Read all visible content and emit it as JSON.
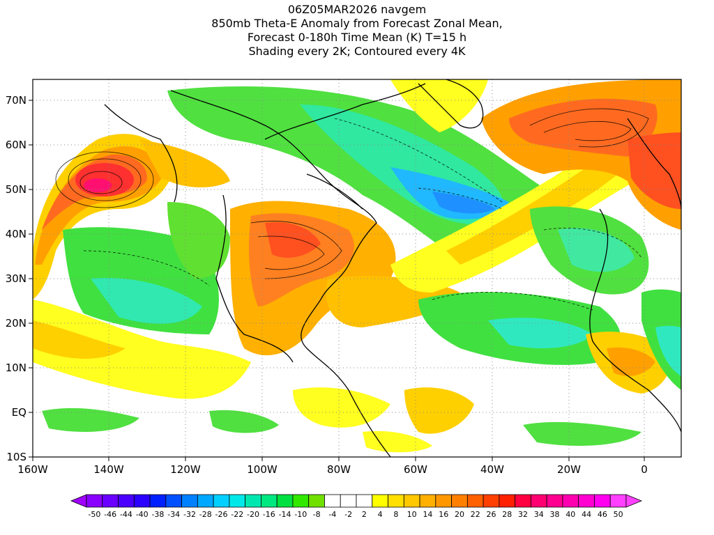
{
  "header": {
    "line1": "06Z05MAR2026 navgem",
    "line2": "850mb Theta-E Anomaly from Forecast Zonal Mean,",
    "line3": "Forecast 0-180h Time Mean (K) T=15 h",
    "line4": "Shading every 2K; Contoured every 4K"
  },
  "axes": {
    "lon_labels": [
      "160W",
      "140W",
      "120W",
      "100W",
      "80W",
      "60W",
      "40W",
      "20W",
      "0"
    ],
    "lat_labels": [
      "70N",
      "60N",
      "50N",
      "40N",
      "30N",
      "20N",
      "10N",
      "EQ",
      "10S"
    ]
  },
  "colorbar": {
    "labels": [
      "-50",
      "-46",
      "-44",
      "-40",
      "-38",
      "-34",
      "-32",
      "-28",
      "-26",
      "-22",
      "-20",
      "-16",
      "-14",
      "-10",
      "-8",
      "-4",
      "-2",
      "2",
      "4",
      "8",
      "10",
      "14",
      "16",
      "20",
      "22",
      "26",
      "28",
      "32",
      "34",
      "38",
      "40",
      "44",
      "46",
      "50"
    ],
    "colors": [
      "#8a00ff",
      "#6a00ff",
      "#4a00ff",
      "#2a00ff",
      "#0020ff",
      "#0050ff",
      "#0080ff",
      "#00a8ff",
      "#00d0ff",
      "#00e8e8",
      "#00e8b0",
      "#00e880",
      "#00e040",
      "#30e800",
      "#70e000",
      "#ffffff",
      "#ffffff",
      "#ffffff",
      "#ffff00",
      "#ffe000",
      "#ffc800",
      "#ffb000",
      "#ff9800",
      "#ff8000",
      "#ff6000",
      "#ff4000",
      "#ff2000",
      "#ff0040",
      "#ff0070",
      "#ff0090",
      "#ff00b0",
      "#ff00d0",
      "#ff00f0",
      "#ff40ff"
    ]
  },
  "map_colors": {
    "ocean_bg": "#ffffff",
    "warm_strong": "#ff6020",
    "warm": "#ffa000",
    "warm_light": "#ffd000",
    "yellow": "#ffff20",
    "green": "#40e020",
    "green_light": "#80f000",
    "cyan": "#40e8c0",
    "blue": "#20a0ff",
    "magenta": "#ff1070"
  }
}
